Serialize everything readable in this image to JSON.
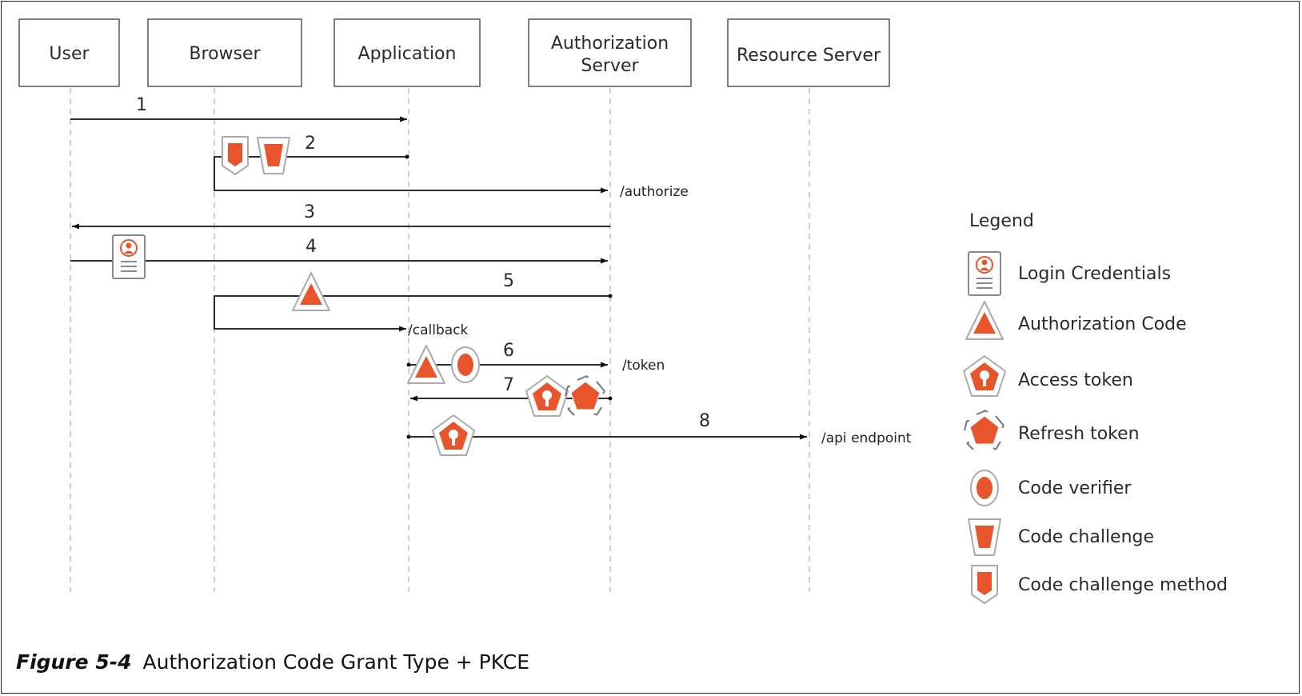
{
  "participants": {
    "user": "User",
    "browser": "Browser",
    "application": "Application",
    "auth_line1": "Authorization",
    "auth_line2": "Server",
    "resource": "Resource Server"
  },
  "steps": [
    "1",
    "2",
    "3",
    "4",
    "5",
    "6",
    "7",
    "8"
  ],
  "endpoints": {
    "authorize": "/authorize",
    "callback": "/callback",
    "token": "/token",
    "api": "/api endpoint"
  },
  "legend": {
    "title": "Legend",
    "items": [
      {
        "icon": "login-credentials-icon",
        "label": "Login Credentials"
      },
      {
        "icon": "authorization-code-icon",
        "label": "Authorization Code"
      },
      {
        "icon": "access-token-icon",
        "label": "Access token"
      },
      {
        "icon": "refresh-token-icon",
        "label": "Refresh token"
      },
      {
        "icon": "code-verifier-icon",
        "label": "Code verifier"
      },
      {
        "icon": "code-challenge-icon",
        "label": "Code challenge"
      },
      {
        "icon": "code-challenge-method-icon",
        "label": "Code challenge method"
      }
    ]
  },
  "caption": {
    "figure": "Figure 5-4",
    "text": "Authorization Code Grant Type + PKCE"
  },
  "colors": {
    "accent": "#e8542b",
    "line": "#111111",
    "lifeline": "#bfbfbf",
    "box_border": "#555555"
  }
}
